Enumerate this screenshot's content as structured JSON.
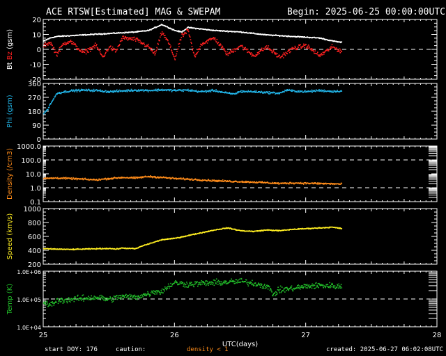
{
  "header": {
    "title": "ACE RTSW[Estimated] MAG & SWEPAM",
    "begin": "Begin: 2025-06-25 00:00:00UTC"
  },
  "footer": {
    "start_doy": "start DOY: 176",
    "caution": "caution:",
    "density_note": "density < 1",
    "created": "created: 2025-06-27 06:02:08UTC"
  },
  "colors": {
    "background": "#000000",
    "axes": "#ffffff",
    "bt": "#ffffff",
    "bz": "#ff2020",
    "phi": "#22b5e8",
    "density": "#ff8c1a",
    "speed": "#ffee22",
    "temp": "#22c02a",
    "caution": "#ff8c1a"
  },
  "chart_data": [
    {
      "type": "scatter",
      "panel": "mag",
      "ylabel_parts": [
        "Bt",
        "Bz",
        "(gsm)"
      ],
      "ylim": [
        -20,
        20
      ],
      "yticks": [
        -20,
        -10,
        0,
        10,
        20
      ],
      "xlim": [
        25,
        28
      ],
      "dashed_line": 0,
      "series": [
        {
          "name": "Bt",
          "x": [
            25.0,
            25.05,
            25.1,
            25.2,
            25.3,
            25.4,
            25.5,
            25.6,
            25.7,
            25.8,
            25.85,
            25.9,
            26.0,
            26.05,
            26.1,
            26.2,
            26.3,
            26.4,
            26.5,
            26.6,
            26.7,
            26.8,
            26.9,
            27.0,
            27.1,
            27.2,
            27.27
          ],
          "values": [
            6,
            8,
            9,
            9.5,
            10,
            10.5,
            11,
            11.5,
            12,
            13,
            15,
            17,
            13,
            12,
            15,
            14,
            13,
            12.5,
            12,
            11,
            10,
            9.5,
            9,
            8.5,
            8,
            6,
            5
          ]
        },
        {
          "name": "Bz",
          "x": [
            25.0,
            25.05,
            25.1,
            25.15,
            25.2,
            25.3,
            25.4,
            25.45,
            25.5,
            25.55,
            25.6,
            25.7,
            25.8,
            25.85,
            25.9,
            25.95,
            26.0,
            26.05,
            26.1,
            26.15,
            26.2,
            26.3,
            26.4,
            26.5,
            26.6,
            26.7,
            26.8,
            26.9,
            27.0,
            27.1,
            27.2,
            27.27
          ],
          "values": [
            3,
            5,
            -3,
            4,
            6,
            -2,
            3,
            -5,
            2,
            -1,
            8,
            7,
            2,
            -3,
            12,
            5,
            -6,
            9,
            13,
            -5,
            4,
            8,
            -3,
            3,
            -4,
            2,
            -5,
            1,
            3,
            -4,
            2,
            -1
          ]
        }
      ]
    },
    {
      "type": "scatter",
      "panel": "phi",
      "ylabel": "Phi (gsm)",
      "ylim": [
        0,
        360
      ],
      "yticks": [
        0,
        90,
        180,
        270,
        360
      ],
      "xlim": [
        25,
        28
      ],
      "series": [
        {
          "name": "Phi",
          "x": [
            25.0,
            25.03,
            25.05,
            25.08,
            25.1,
            25.2,
            25.3,
            25.4,
            25.5,
            25.6,
            25.7,
            25.8,
            25.9,
            26.0,
            26.1,
            26.2,
            26.3,
            26.4,
            26.45,
            26.5,
            26.6,
            26.7,
            26.8,
            26.85,
            26.9,
            27.0,
            27.1,
            27.2,
            27.27
          ],
          "values": [
            170,
            195,
            230,
            270,
            300,
            315,
            320,
            318,
            310,
            315,
            320,
            318,
            322,
            318,
            320,
            310,
            318,
            300,
            295,
            312,
            310,
            305,
            300,
            320,
            315,
            310,
            318,
            312,
            315
          ]
        }
      ]
    },
    {
      "type": "scatter",
      "panel": "density",
      "ylabel": "Density (/cm3)",
      "ylim": [
        0.1,
        1000
      ],
      "yscale": "log",
      "ytick_labels": [
        "0.1",
        "1.0",
        "10.0",
        "100.0",
        "1000.0"
      ],
      "xlim": [
        25,
        28
      ],
      "dashed_lines": [
        1,
        100
      ],
      "series": [
        {
          "name": "Density",
          "x": [
            25.0,
            25.1,
            25.2,
            25.3,
            25.4,
            25.5,
            25.6,
            25.7,
            25.8,
            25.9,
            26.0,
            26.1,
            26.2,
            26.3,
            26.4,
            26.5,
            26.6,
            26.7,
            26.8,
            26.9,
            27.0,
            27.1,
            27.2,
            27.27
          ],
          "values": [
            5,
            5.5,
            5,
            4.5,
            4,
            5,
            6,
            5.5,
            7,
            6,
            5,
            4.5,
            4,
            3.5,
            3.2,
            3,
            2.8,
            2.5,
            2.2,
            2.4,
            2.3,
            2.2,
            2.1,
            2
          ]
        }
      ]
    },
    {
      "type": "scatter",
      "panel": "speed",
      "ylabel": "Speed (km/s)",
      "ylim": [
        200,
        1000
      ],
      "yticks": [
        200,
        400,
        600,
        800,
        1000
      ],
      "xlim": [
        25,
        28
      ],
      "series": [
        {
          "name": "Speed",
          "x": [
            25.0,
            25.1,
            25.2,
            25.3,
            25.4,
            25.5,
            25.55,
            25.6,
            25.7,
            25.75,
            25.8,
            25.9,
            26.0,
            26.1,
            26.2,
            26.3,
            26.4,
            26.5,
            26.6,
            26.7,
            26.8,
            26.9,
            27.0,
            27.1,
            27.2,
            27.27
          ],
          "values": [
            430,
            425,
            420,
            425,
            430,
            435,
            425,
            440,
            430,
            470,
            500,
            560,
            580,
            620,
            660,
            700,
            730,
            690,
            680,
            700,
            690,
            710,
            720,
            730,
            740,
            720
          ]
        }
      ]
    },
    {
      "type": "scatter",
      "panel": "temp",
      "ylabel": "Temp (K)",
      "ylim": [
        10000,
        1000000
      ],
      "yscale": "log",
      "ytick_labels": [
        "1.0E+04",
        "1.0E+05",
        "1.0E+06"
      ],
      "xlim": [
        25,
        28
      ],
      "dashed_line": 100000,
      "xticks": [
        25,
        26,
        27,
        28
      ],
      "xlabel": "UTC(days)",
      "series": [
        {
          "name": "Temp",
          "x": [
            25.0,
            25.05,
            25.1,
            25.2,
            25.3,
            25.4,
            25.5,
            25.6,
            25.7,
            25.8,
            25.85,
            25.9,
            26.0,
            26.1,
            26.2,
            26.3,
            26.4,
            26.5,
            26.6,
            26.7,
            26.75,
            26.8,
            26.9,
            27.0,
            27.1,
            27.2,
            27.27
          ],
          "values": [
            80000,
            60000,
            90000,
            100000,
            110000,
            120000,
            100000,
            130000,
            120000,
            160000,
            200000,
            190000,
            400000,
            350000,
            380000,
            400000,
            420000,
            450000,
            380000,
            300000,
            150000,
            220000,
            250000,
            300000,
            320000,
            310000,
            290000
          ]
        }
      ]
    }
  ]
}
